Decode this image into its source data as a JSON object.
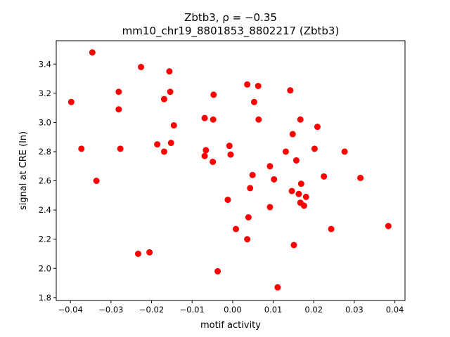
{
  "chart_data": {
    "type": "scatter",
    "title_line1": "Zbtb3, ρ = −0.35",
    "title_line2": "mm10_chr19_8801853_8802217 (Zbtb3)",
    "xlabel": "motif activity",
    "ylabel": "signal at CRE (ln)",
    "xlim": [
      -0.0435,
      0.0425
    ],
    "ylim": [
      1.78,
      3.56
    ],
    "xticks": [
      -0.04,
      -0.03,
      -0.02,
      -0.01,
      0.0,
      0.01,
      0.02,
      0.03,
      0.04
    ],
    "xtick_labels": [
      "−0.04",
      "−0.03",
      "−0.02",
      "−0.01",
      "0.00",
      "0.01",
      "0.02",
      "0.03",
      "0.04"
    ],
    "yticks": [
      1.8,
      2.0,
      2.2,
      2.4,
      2.6,
      2.8,
      3.0,
      3.2,
      3.4
    ],
    "ytick_labels": [
      "1.8",
      "2.0",
      "2.2",
      "2.4",
      "2.6",
      "2.8",
      "3.0",
      "3.2",
      "3.4"
    ],
    "marker_color": "#ff0000",
    "grid": false,
    "points": [
      {
        "x": -0.0398,
        "y": 3.14
      },
      {
        "x": -0.0373,
        "y": 2.82
      },
      {
        "x": -0.0346,
        "y": 3.48
      },
      {
        "x": -0.0336,
        "y": 2.6
      },
      {
        "x": -0.0281,
        "y": 3.21
      },
      {
        "x": -0.0281,
        "y": 3.09
      },
      {
        "x": -0.0277,
        "y": 2.82
      },
      {
        "x": -0.0233,
        "y": 2.1
      },
      {
        "x": -0.0226,
        "y": 3.38
      },
      {
        "x": -0.0205,
        "y": 2.11
      },
      {
        "x": -0.0186,
        "y": 2.85
      },
      {
        "x": -0.0169,
        "y": 3.16
      },
      {
        "x": -0.0169,
        "y": 2.8
      },
      {
        "x": -0.0156,
        "y": 3.35
      },
      {
        "x": -0.0154,
        "y": 3.21
      },
      {
        "x": -0.0152,
        "y": 2.86
      },
      {
        "x": -0.0145,
        "y": 2.98
      },
      {
        "x": -0.0069,
        "y": 3.03
      },
      {
        "x": -0.0069,
        "y": 2.77
      },
      {
        "x": -0.0066,
        "y": 2.81
      },
      {
        "x": -0.0047,
        "y": 3.19
      },
      {
        "x": -0.0048,
        "y": 3.02
      },
      {
        "x": -0.0049,
        "y": 2.73
      },
      {
        "x": -0.0037,
        "y": 1.98
      },
      {
        "x": -0.0012,
        "y": 2.47
      },
      {
        "x": -0.0008,
        "y": 2.84
      },
      {
        "x": -0.0005,
        "y": 2.78
      },
      {
        "x": 0.0008,
        "y": 2.27
      },
      {
        "x": 0.0036,
        "y": 3.26
      },
      {
        "x": 0.0036,
        "y": 2.2
      },
      {
        "x": 0.0039,
        "y": 2.35
      },
      {
        "x": 0.0043,
        "y": 2.55
      },
      {
        "x": 0.0049,
        "y": 2.64
      },
      {
        "x": 0.0053,
        "y": 3.14
      },
      {
        "x": 0.0063,
        "y": 3.25
      },
      {
        "x": 0.0064,
        "y": 3.02
      },
      {
        "x": 0.0092,
        "y": 2.7
      },
      {
        "x": 0.0092,
        "y": 2.42
      },
      {
        "x": 0.0102,
        "y": 2.61
      },
      {
        "x": 0.0111,
        "y": 1.87
      },
      {
        "x": 0.0131,
        "y": 2.8
      },
      {
        "x": 0.0142,
        "y": 3.22
      },
      {
        "x": 0.0146,
        "y": 2.53
      },
      {
        "x": 0.0148,
        "y": 2.92
      },
      {
        "x": 0.0151,
        "y": 2.16
      },
      {
        "x": 0.0157,
        "y": 2.74
      },
      {
        "x": 0.0163,
        "y": 2.51
      },
      {
        "x": 0.0167,
        "y": 3.02
      },
      {
        "x": 0.0167,
        "y": 2.45
      },
      {
        "x": 0.0169,
        "y": 2.58
      },
      {
        "x": 0.0176,
        "y": 2.43
      },
      {
        "x": 0.0181,
        "y": 2.49
      },
      {
        "x": 0.0202,
        "y": 2.82
      },
      {
        "x": 0.0209,
        "y": 2.97
      },
      {
        "x": 0.0225,
        "y": 2.63
      },
      {
        "x": 0.0243,
        "y": 2.27
      },
      {
        "x": 0.0276,
        "y": 2.8
      },
      {
        "x": 0.0315,
        "y": 2.62
      },
      {
        "x": 0.0384,
        "y": 2.29
      }
    ]
  }
}
